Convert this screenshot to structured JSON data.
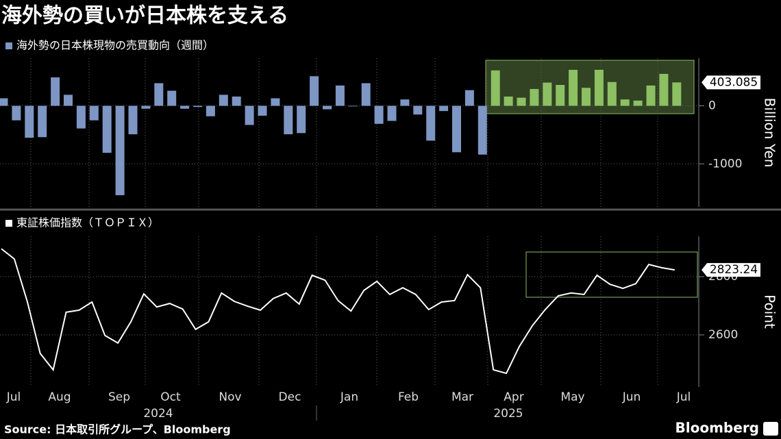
{
  "title": "海外勢の買いが日本株を支える",
  "source": "Source: 日本取引所グループ、Bloomberg",
  "brand": "Bloomberg",
  "x_axis": {
    "months": [
      "Jul",
      "Aug",
      "Sep",
      "Oct",
      "Nov",
      "Dec",
      "Jan",
      "Feb",
      "Mar",
      "Apr",
      "May",
      "Jun",
      "Jul"
    ],
    "years": [
      "2024",
      "2025"
    ]
  },
  "chart_data": [
    {
      "type": "bar",
      "y_label": "Billion Yen",
      "series": [
        {
          "name": "海外勢の日本株現物の売買動向（週間）",
          "color": "#7d96c4",
          "values": [
            130,
            -250,
            -550,
            -540,
            490,
            190,
            -390,
            -250,
            -810,
            -1540,
            -490,
            -50,
            390,
            260,
            -50,
            -20,
            -180,
            190,
            160,
            -330,
            -170,
            130,
            -490,
            -470,
            510,
            -60,
            350,
            -10,
            390,
            -310,
            -260,
            110,
            -150,
            -600,
            -90,
            -800,
            270,
            -840,
            610,
            160,
            140,
            290,
            400,
            360,
            620,
            310,
            620,
            410,
            110,
            90,
            350,
            550,
            403.085
          ]
        }
      ],
      "bar_colors": [
        "#7d96c4",
        "#7d96c4",
        "#7d96c4",
        "#7d96c4",
        "#7d96c4",
        "#7d96c4",
        "#7d96c4",
        "#7d96c4",
        "#7d96c4",
        "#7d96c4",
        "#7d96c4",
        "#7d96c4",
        "#7d96c4",
        "#7d96c4",
        "#7d96c4",
        "#7d96c4",
        "#7d96c4",
        "#7d96c4",
        "#7d96c4",
        "#7d96c4",
        "#7d96c4",
        "#7d96c4",
        "#7d96c4",
        "#7d96c4",
        "#7d96c4",
        "#7d96c4",
        "#7d96c4",
        "#7d96c4",
        "#7d96c4",
        "#7d96c4",
        "#7d96c4",
        "#7d96c4",
        "#7d96c4",
        "#7d96c4",
        "#7d96c4",
        "#7d96c4",
        "#7d96c4",
        "#7d96c4",
        "#8cc063",
        "#8cc063",
        "#8cc063",
        "#8cc063",
        "#8cc063",
        "#8cc063",
        "#8cc063",
        "#8cc063",
        "#8cc063",
        "#8cc063",
        "#8cc063",
        "#8cc063",
        "#8cc063",
        "#8cc063",
        "#8cc063"
      ],
      "ylim": [
        -1740,
        820
      ],
      "yticks": [
        -1000,
        0
      ],
      "grid": true
    },
    {
      "type": "line",
      "y_label": "Point",
      "series": [
        {
          "name": "東証株価指数（ＴＯＰＩＸ）",
          "color": "#ffffff",
          "values": [
            2896,
            2861,
            2715,
            2536,
            2480,
            2678,
            2685,
            2713,
            2598,
            2572,
            2645,
            2741,
            2696,
            2708,
            2689,
            2619,
            2645,
            2744,
            2715,
            2699,
            2685,
            2725,
            2744,
            2706,
            2805,
            2788,
            2718,
            2682,
            2753,
            2784,
            2739,
            2762,
            2739,
            2687,
            2713,
            2718,
            2807,
            2762,
            2480,
            2468,
            2560,
            2631,
            2687,
            2734,
            2744,
            2739,
            2805,
            2774,
            2760,
            2776,
            2842,
            2831,
            2823.24
          ]
        }
      ],
      "ylim": [
        2421,
        2939
      ],
      "yticks": [
        2600,
        2800
      ],
      "grid": true
    }
  ]
}
